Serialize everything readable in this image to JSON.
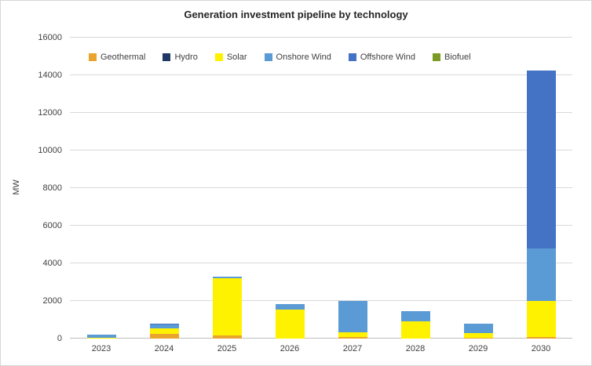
{
  "chart_data": {
    "type": "bar",
    "stacked": true,
    "title": "Generation investment pipeline by technology",
    "xlabel": "",
    "ylabel": "MW",
    "categories": [
      "2023",
      "2024",
      "2025",
      "2026",
      "2027",
      "2028",
      "2029",
      "2030"
    ],
    "series": [
      {
        "name": "Geothermal",
        "color": "#E8A42C",
        "values": [
          0,
          250,
          150,
          0,
          100,
          0,
          50,
          100
        ]
      },
      {
        "name": "Hydro",
        "color": "#1F3864",
        "values": [
          0,
          0,
          0,
          0,
          0,
          0,
          0,
          0
        ]
      },
      {
        "name": "Solar",
        "color": "#FFF200",
        "values": [
          50,
          300,
          3050,
          1550,
          250,
          900,
          250,
          1900
        ]
      },
      {
        "name": "Onshore Wind",
        "color": "#5B9BD5",
        "values": [
          150,
          200,
          100,
          300,
          1650,
          550,
          500,
          2800
        ]
      },
      {
        "name": "Offshore Wind",
        "color": "#4472C4",
        "values": [
          0,
          50,
          0,
          0,
          0,
          0,
          0,
          9450
        ]
      },
      {
        "name": "Biofuel",
        "color": "#7C9B25",
        "values": [
          0,
          0,
          0,
          0,
          0,
          0,
          0,
          0
        ]
      }
    ],
    "ylim": [
      0,
      16000
    ],
    "ytick_step": 2000,
    "grid": true,
    "legend_position": "top-inside"
  }
}
